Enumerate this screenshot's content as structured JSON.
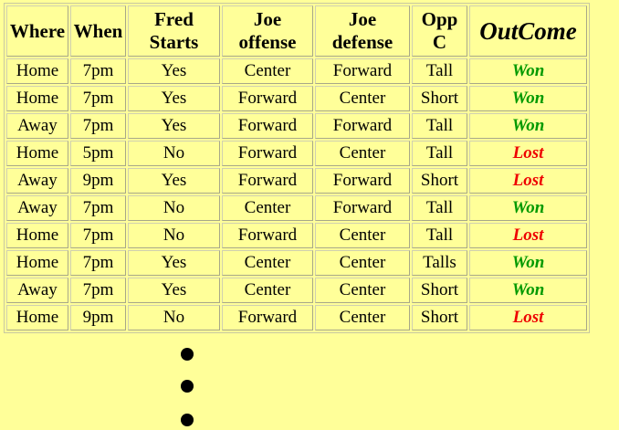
{
  "table": {
    "headers": {
      "where": "Where",
      "when": "When",
      "fred_line1": "Fred",
      "fred_line2": "Starts",
      "joe_off_line1": "Joe",
      "joe_off_line2": "offense",
      "joe_def_line1": "Joe",
      "joe_def_line2": "defense",
      "opp_line1": "Opp",
      "opp_line2": "C",
      "outcome": "OutCome"
    },
    "rows": [
      {
        "where": "Home",
        "when": "7pm",
        "fred": "Yes",
        "joe_off": "Center",
        "joe_def": "Forward",
        "opp": "Tall",
        "outcome": "Won"
      },
      {
        "where": "Home",
        "when": "7pm",
        "fred": "Yes",
        "joe_off": "Forward",
        "joe_def": "Center",
        "opp": "Short",
        "outcome": "Won"
      },
      {
        "where": "Away",
        "when": "7pm",
        "fred": "Yes",
        "joe_off": "Forward",
        "joe_def": "Forward",
        "opp": "Tall",
        "outcome": "Won"
      },
      {
        "where": "Home",
        "when": "5pm",
        "fred": "No",
        "joe_off": "Forward",
        "joe_def": "Center",
        "opp": "Tall",
        "outcome": "Lost"
      },
      {
        "where": "Away",
        "when": "9pm",
        "fred": "Yes",
        "joe_off": "Forward",
        "joe_def": "Forward",
        "opp": "Short",
        "outcome": "Lost"
      },
      {
        "where": "Away",
        "when": "7pm",
        "fred": "No",
        "joe_off": "Center",
        "joe_def": "Forward",
        "opp": "Tall",
        "outcome": "Won"
      },
      {
        "where": "Home",
        "when": "7pm",
        "fred": "No",
        "joe_off": "Forward",
        "joe_def": "Center",
        "opp": "Tall",
        "outcome": "Lost"
      },
      {
        "where": "Home",
        "when": "7pm",
        "fred": "Yes",
        "joe_off": "Center",
        "joe_def": "Center",
        "opp": "Talls",
        "outcome": "Won"
      },
      {
        "where": "Away",
        "when": "7pm",
        "fred": "Yes",
        "joe_off": "Center",
        "joe_def": "Center",
        "opp": "Short",
        "outcome": "Won"
      },
      {
        "where": "Home",
        "when": "9pm",
        "fred": "No",
        "joe_off": "Forward",
        "joe_def": "Center",
        "opp": "Short",
        "outcome": "Lost"
      }
    ]
  },
  "colors": {
    "background": "#ffff99",
    "won": "#009900",
    "lost": "#ee0000"
  },
  "continuation_dots": 3
}
